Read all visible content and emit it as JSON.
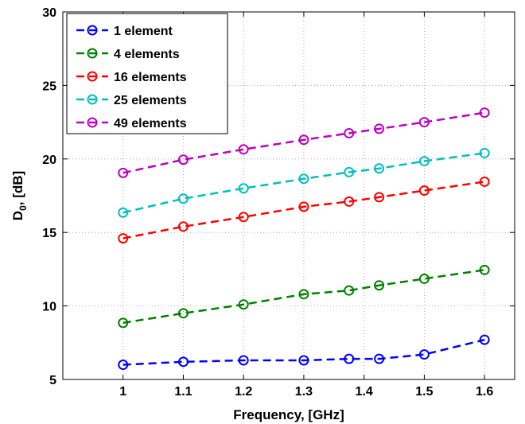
{
  "chart_data": {
    "type": "line",
    "title": "",
    "xlabel": "Frequency, [GHz]",
    "ylabel_main": "D",
    "ylabel_sub": "0",
    "ylabel_rest": ", [dB]",
    "xlim": [
      0.9,
      1.65
    ],
    "ylim": [
      5,
      30
    ],
    "xticks": [
      1,
      1.1,
      1.2,
      1.3,
      1.4,
      1.5,
      1.6
    ],
    "xtick_labels": [
      "1",
      "1.1",
      "1.2",
      "1.3",
      "1.4",
      "1.5",
      "1.6"
    ],
    "yticks": [
      5,
      10,
      15,
      20,
      25,
      30
    ],
    "ytick_labels": [
      "5",
      "10",
      "15",
      "20",
      "25",
      "30"
    ],
    "grid": true,
    "legend_position": "top-left",
    "x": [
      1,
      1.1,
      1.2,
      1.3,
      1.375,
      1.425,
      1.5,
      1.6
    ],
    "series": [
      {
        "name": "1 element",
        "color": "#0000ff",
        "values": [
          6.0,
          6.2,
          6.3,
          6.3,
          6.4,
          6.4,
          6.7,
          7.7
        ]
      },
      {
        "name": "4 elements",
        "color": "#008000",
        "values": [
          8.85,
          9.5,
          10.1,
          10.8,
          11.05,
          11.4,
          11.85,
          12.45
        ]
      },
      {
        "name": "16 elements",
        "color": "#ff0000",
        "values": [
          14.6,
          15.4,
          16.05,
          16.75,
          17.1,
          17.4,
          17.85,
          18.45
        ]
      },
      {
        "name": "25 elements",
        "color": "#00bfbf",
        "values": [
          16.35,
          17.3,
          18.0,
          18.65,
          19.1,
          19.35,
          19.85,
          20.4
        ]
      },
      {
        "name": "49 elements",
        "color": "#bf00bf",
        "values": [
          19.05,
          19.95,
          20.65,
          21.3,
          21.75,
          22.05,
          22.5,
          23.15
        ]
      }
    ]
  }
}
